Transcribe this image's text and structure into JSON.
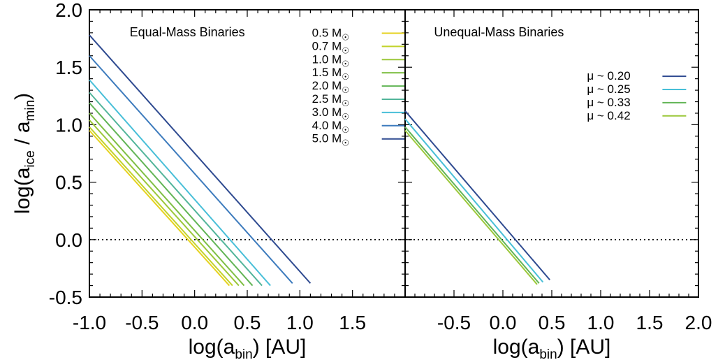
{
  "chart_data": [
    {
      "type": "line",
      "title": "Equal-Mass Binaries",
      "xlabel": "log(a_bin) [AU]",
      "ylabel": "log(a_ice / a_min)",
      "xlim": [
        -1.0,
        2.0
      ],
      "ylim": [
        -0.5,
        2.0
      ],
      "x_ticks": [
        "-1.0",
        "-0.5",
        "0.0",
        "0.5",
        "1.0",
        "1.5"
      ],
      "y_ticks": [
        "-0.5",
        "0.0",
        "0.5",
        "1.0",
        "1.5",
        "2.0"
      ],
      "reference_line": {
        "y": 0.0,
        "style": "dotted"
      },
      "legend_placement": "top-right",
      "series": [
        {
          "name": "0.5 M☉",
          "color": "#e6d21e",
          "x": [
            -1.0,
            0.33
          ],
          "y": [
            0.95,
            -0.4
          ]
        },
        {
          "name": "0.7 M☉",
          "color": "#c2d32a",
          "x": [
            -1.0,
            0.36
          ],
          "y": [
            0.98,
            -0.4
          ]
        },
        {
          "name": "1.0 M☉",
          "color": "#9cc83a",
          "x": [
            -1.0,
            0.42
          ],
          "y": [
            1.04,
            -0.4
          ]
        },
        {
          "name": "1.5 M☉",
          "color": "#7fbf44",
          "x": [
            -1.0,
            0.47
          ],
          "y": [
            1.1,
            -0.4
          ]
        },
        {
          "name": "2.0 M☉",
          "color": "#62b556",
          "x": [
            -1.0,
            0.55
          ],
          "y": [
            1.19,
            -0.4
          ]
        },
        {
          "name": "2.5 M☉",
          "color": "#52b59a",
          "x": [
            -1.0,
            0.64
          ],
          "y": [
            1.28,
            -0.4
          ]
        },
        {
          "name": "3.0 M☉",
          "color": "#48bfd8",
          "x": [
            -1.0,
            0.72
          ],
          "y": [
            1.39,
            -0.4
          ]
        },
        {
          "name": "4.0 M☉",
          "color": "#3d7bbd",
          "x": [
            -1.0,
            0.93
          ],
          "y": [
            1.6,
            -0.38
          ]
        },
        {
          "name": "5.0 M☉",
          "color": "#2e4a90",
          "x": [
            -1.0,
            1.1
          ],
          "y": [
            1.78,
            -0.38
          ]
        }
      ]
    },
    {
      "type": "line",
      "title": "Unequal-Mass Binaries",
      "xlabel": "log(a_bin) [AU]",
      "ylabel": "",
      "xlim": [
        -1.0,
        2.0
      ],
      "ylim": [
        -0.5,
        2.0
      ],
      "x_ticks": [
        "-0.5",
        "0.0",
        "0.5",
        "1.0",
        "1.5",
        "2.0"
      ],
      "reference_line": {
        "y": 0.0,
        "style": "dotted"
      },
      "legend_placement": "top-right",
      "series": [
        {
          "name": "μ ~ 0.20",
          "color": "#2e4a90",
          "x": [
            -1.0,
            0.48
          ],
          "y": [
            1.12,
            -0.35
          ]
        },
        {
          "name": "μ ~ 0.25",
          "color": "#48bfd8",
          "x": [
            -1.0,
            0.41
          ],
          "y": [
            1.05,
            -0.37
          ]
        },
        {
          "name": "μ ~ 0.33",
          "color": "#62b556",
          "x": [
            -1.0,
            0.37
          ],
          "y": [
            0.98,
            -0.38
          ]
        },
        {
          "name": "μ ~ 0.42",
          "color": "#9cc83a",
          "x": [
            -1.0,
            0.35
          ],
          "y": [
            0.95,
            -0.39
          ]
        }
      ]
    }
  ]
}
